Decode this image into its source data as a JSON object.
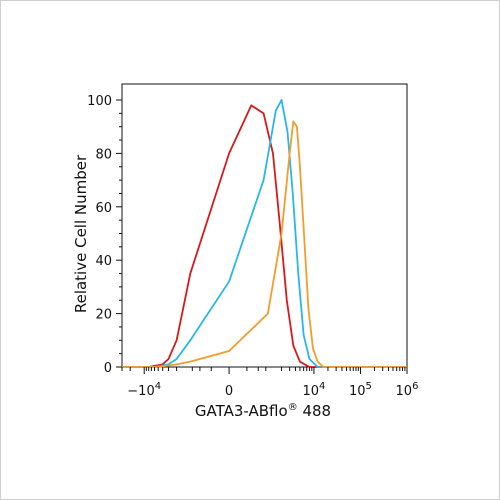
{
  "chart_data": {
    "type": "line",
    "xlabel": "GATA3-ABflo",
    "xlabel_sup": "®",
    "xlabel_suffix": " 488",
    "ylabel": "Relative Cell Number",
    "ylim": [
      0,
      100
    ],
    "yticks": [
      0,
      20,
      40,
      60,
      80,
      100
    ],
    "x_scale": "biexponential",
    "xlim": [
      -30000,
      1000000
    ],
    "xticks": [
      {
        "value": -10000,
        "base": "−10",
        "exp": "4"
      },
      {
        "value": 0,
        "base": "0",
        "exp": ""
      },
      {
        "value": 10000,
        "base": "10",
        "exp": "4"
      },
      {
        "value": 100000,
        "base": "10",
        "exp": "5"
      },
      {
        "value": 1000000,
        "base": "10",
        "exp": "6"
      }
    ],
    "grid": false,
    "legend": "none",
    "series": [
      {
        "color": "#d7191c",
        "x": [
          -30000,
          -8000,
          -4000,
          -3000,
          -2000,
          -1000,
          0,
          400,
          800,
          1300,
          1800,
          2600,
          3600,
          5000,
          8000,
          20000,
          100000,
          1000000
        ],
        "values": [
          0,
          0,
          1,
          3,
          10,
          35,
          80,
          98,
          95,
          80,
          55,
          25,
          8,
          2,
          0,
          0,
          0,
          0
        ]
      },
      {
        "color": "#29b6e8",
        "x": [
          -30000,
          -6000,
          -3000,
          -2000,
          -1000,
          0,
          800,
          1500,
          2000,
          2700,
          3500,
          4600,
          6000,
          8000,
          12000,
          20000,
          100000,
          1000000
        ],
        "values": [
          0,
          0,
          1,
          3,
          10,
          32,
          70,
          96,
          100,
          88,
          65,
          35,
          12,
          3,
          0,
          0,
          0,
          0
        ]
      },
      {
        "color": "#f39c2b",
        "x": [
          -30000,
          -5000,
          -2000,
          -1000,
          0,
          1000,
          2000,
          3000,
          3600,
          4300,
          5000,
          6200,
          7600,
          9500,
          12000,
          16000,
          100000,
          1000000
        ],
        "values": [
          0,
          0,
          1,
          2,
          6,
          20,
          50,
          80,
          92,
          90,
          75,
          48,
          22,
          7,
          2,
          0,
          0,
          0
        ]
      }
    ]
  }
}
